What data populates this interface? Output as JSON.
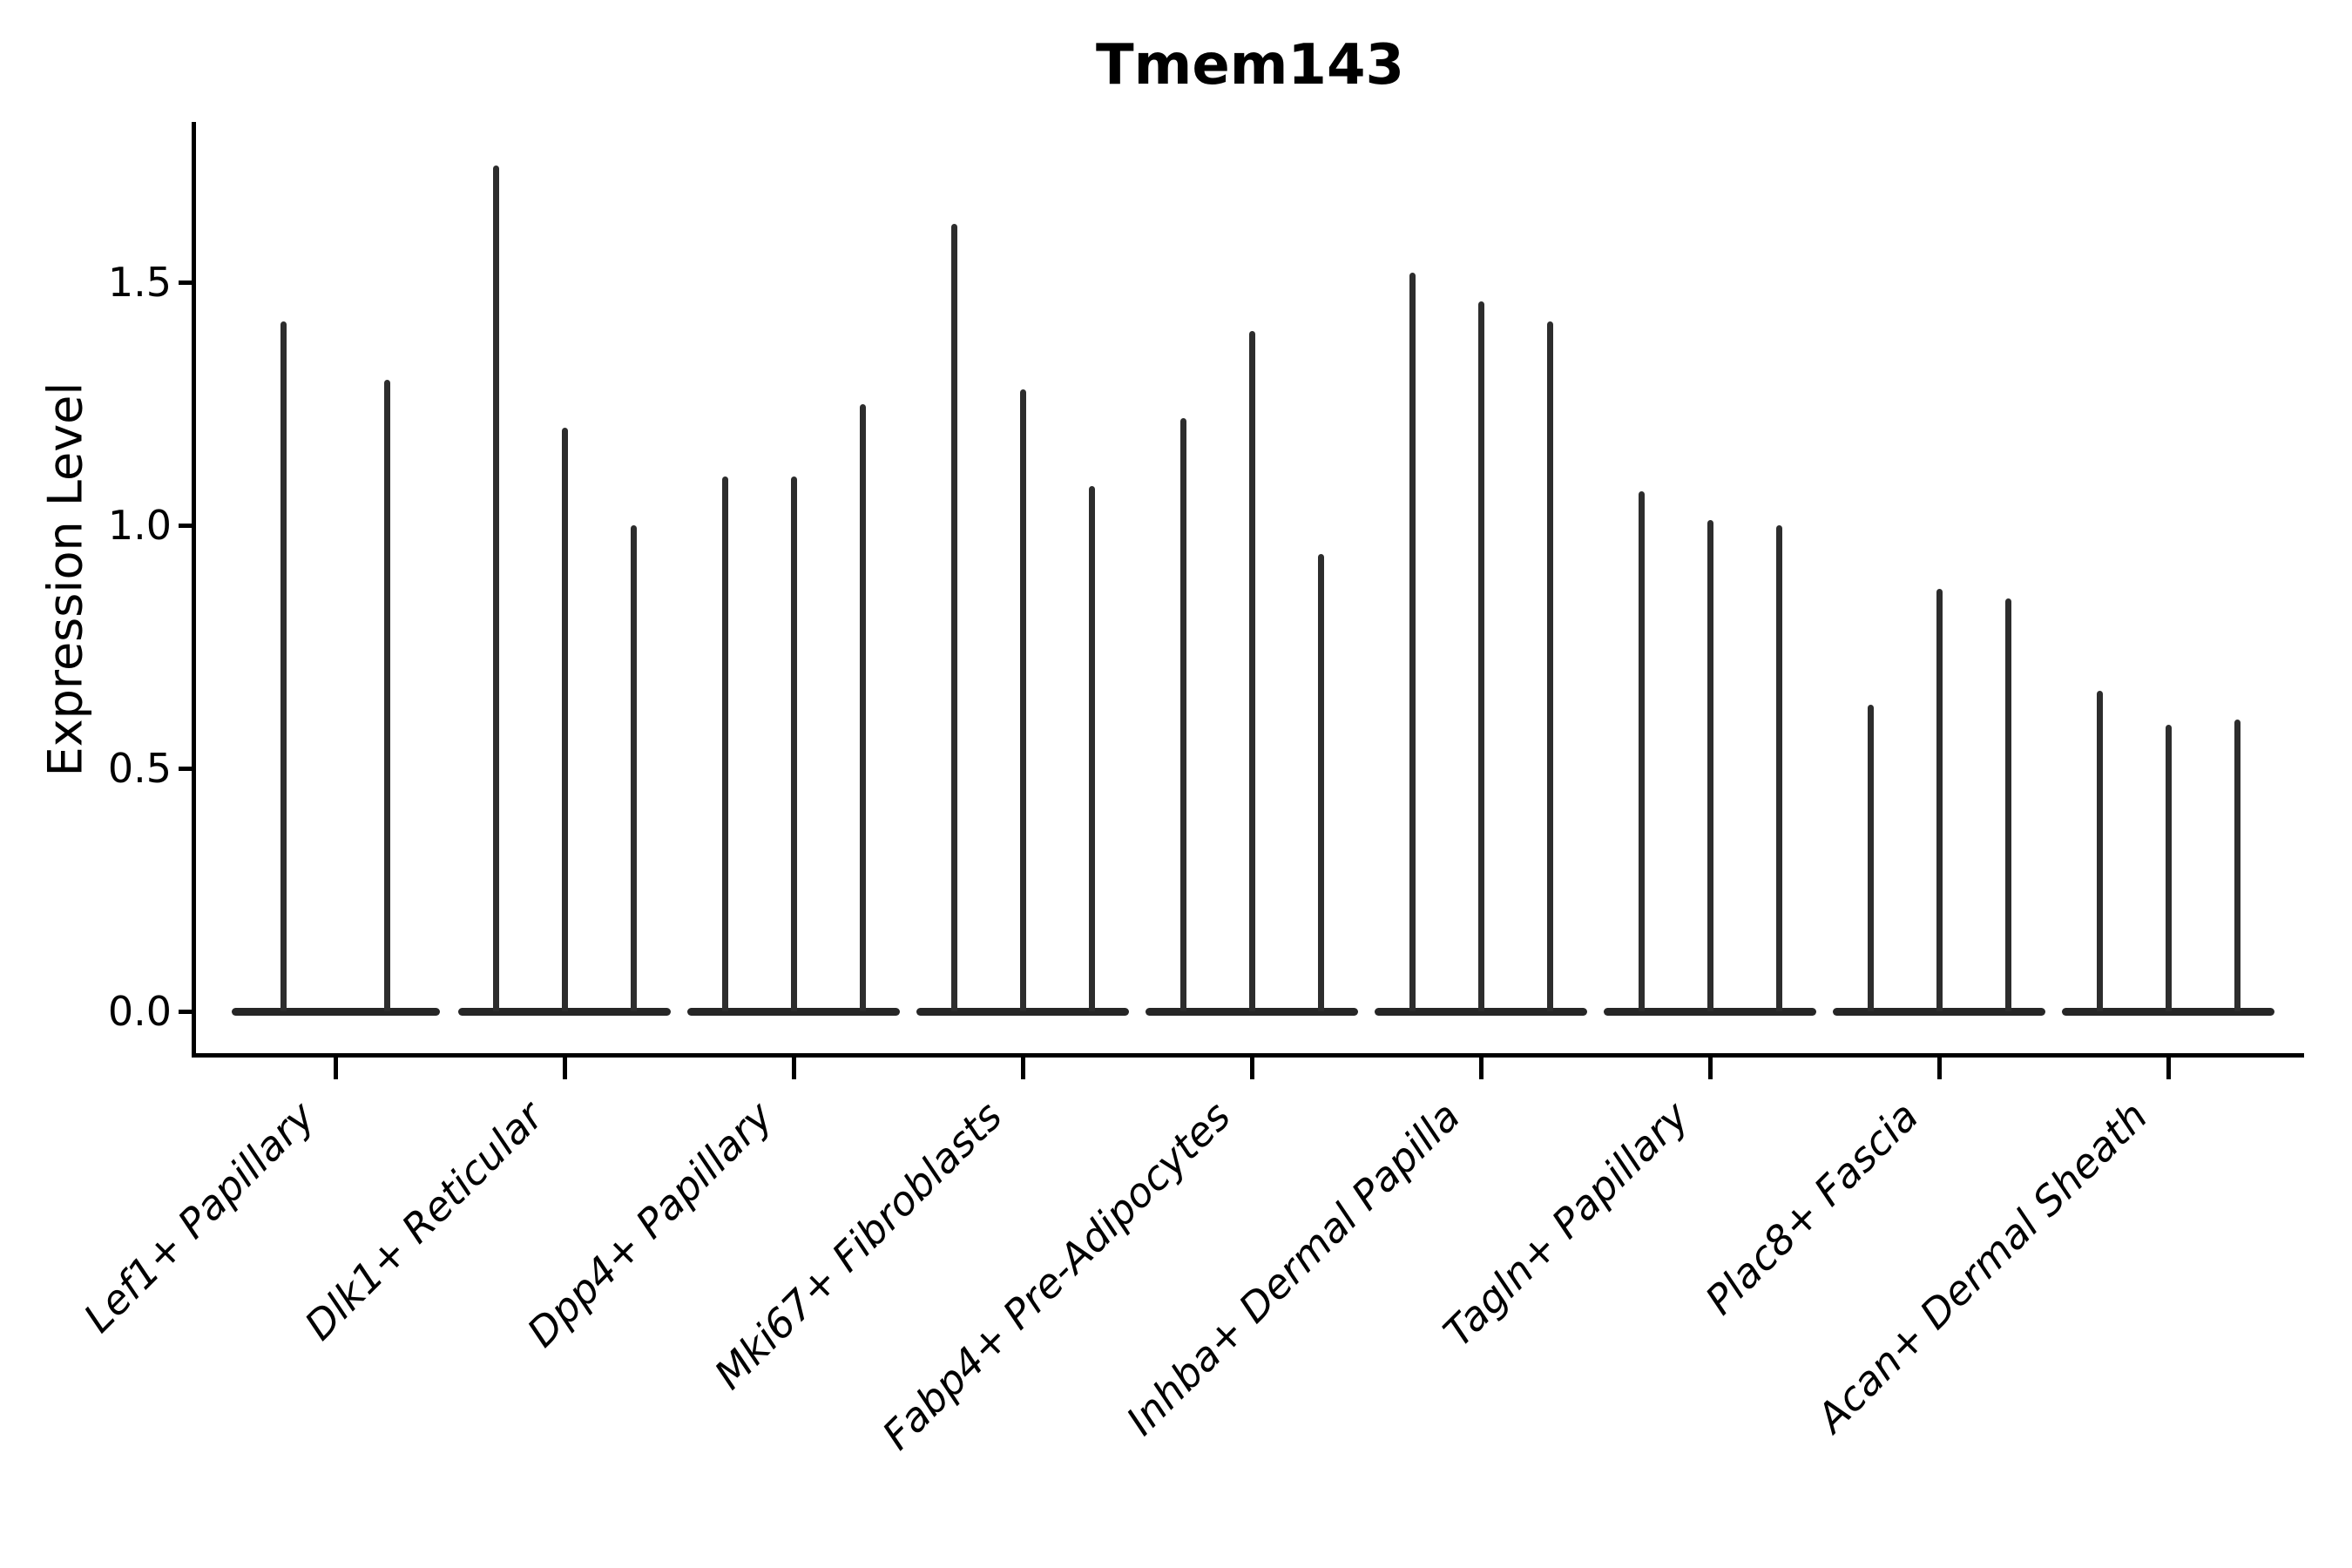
{
  "title": "Tmem143",
  "y_axis": {
    "label": "Expression Level",
    "ticks": [
      "0.0",
      "0.5",
      "1.0",
      "1.5"
    ]
  },
  "chart_data": {
    "type": "violin",
    "title": "Tmem143",
    "xlabel": "",
    "ylabel": "Expression Level",
    "ylim": [
      -0.09,
      1.83
    ],
    "grid": false,
    "legend": "none",
    "description": "Single-cell expression violin plot; each cell-type group contains narrow spike-shaped violins (one per replicate) with wide flat bases at 0. Values are the peak (max) expression level of each violin spike.",
    "categories": [
      "Lef1+ Papillary",
      "Dlk1+ Reticular",
      "Dpp4+ Papillary",
      "Mki67+ Fibroblasts",
      "Fabp4+ Pre-Adipocytes",
      "Inhba+ Dermal Papilla",
      "Tagln+ Papillary",
      "Plac8+ Fascia",
      "Acan+ Dermal Sheath"
    ],
    "groups": [
      {
        "label": "Lef1+ Papillary",
        "spike_peaks": [
          1.42,
          1.3
        ]
      },
      {
        "label": "Dlk1+ Reticular",
        "spike_peaks": [
          1.74,
          1.2,
          1.0
        ]
      },
      {
        "label": "Dpp4+ Papillary",
        "spike_peaks": [
          1.1,
          1.1,
          1.25
        ]
      },
      {
        "label": "Mki67+ Fibroblasts",
        "spike_peaks": [
          1.62,
          1.28,
          1.08
        ]
      },
      {
        "label": "Fabp4+ Pre-Adipocytes",
        "spike_peaks": [
          1.22,
          1.4,
          0.94
        ]
      },
      {
        "label": "Inhba+ Dermal Papilla",
        "spike_peaks": [
          1.52,
          1.46,
          1.42
        ]
      },
      {
        "label": "Tagln+ Papillary",
        "spike_peaks": [
          1.07,
          1.01,
          1.0
        ]
      },
      {
        "label": "Plac8+ Fascia",
        "spike_peaks": [
          0.63,
          0.87,
          0.85
        ]
      },
      {
        "label": "Acan+ Dermal Sheath",
        "spike_peaks": [
          0.66,
          0.59,
          0.6
        ]
      }
    ],
    "colors": {
      "violin": "#2d2d2d",
      "axis": "#000000",
      "background": "#ffffff"
    }
  }
}
